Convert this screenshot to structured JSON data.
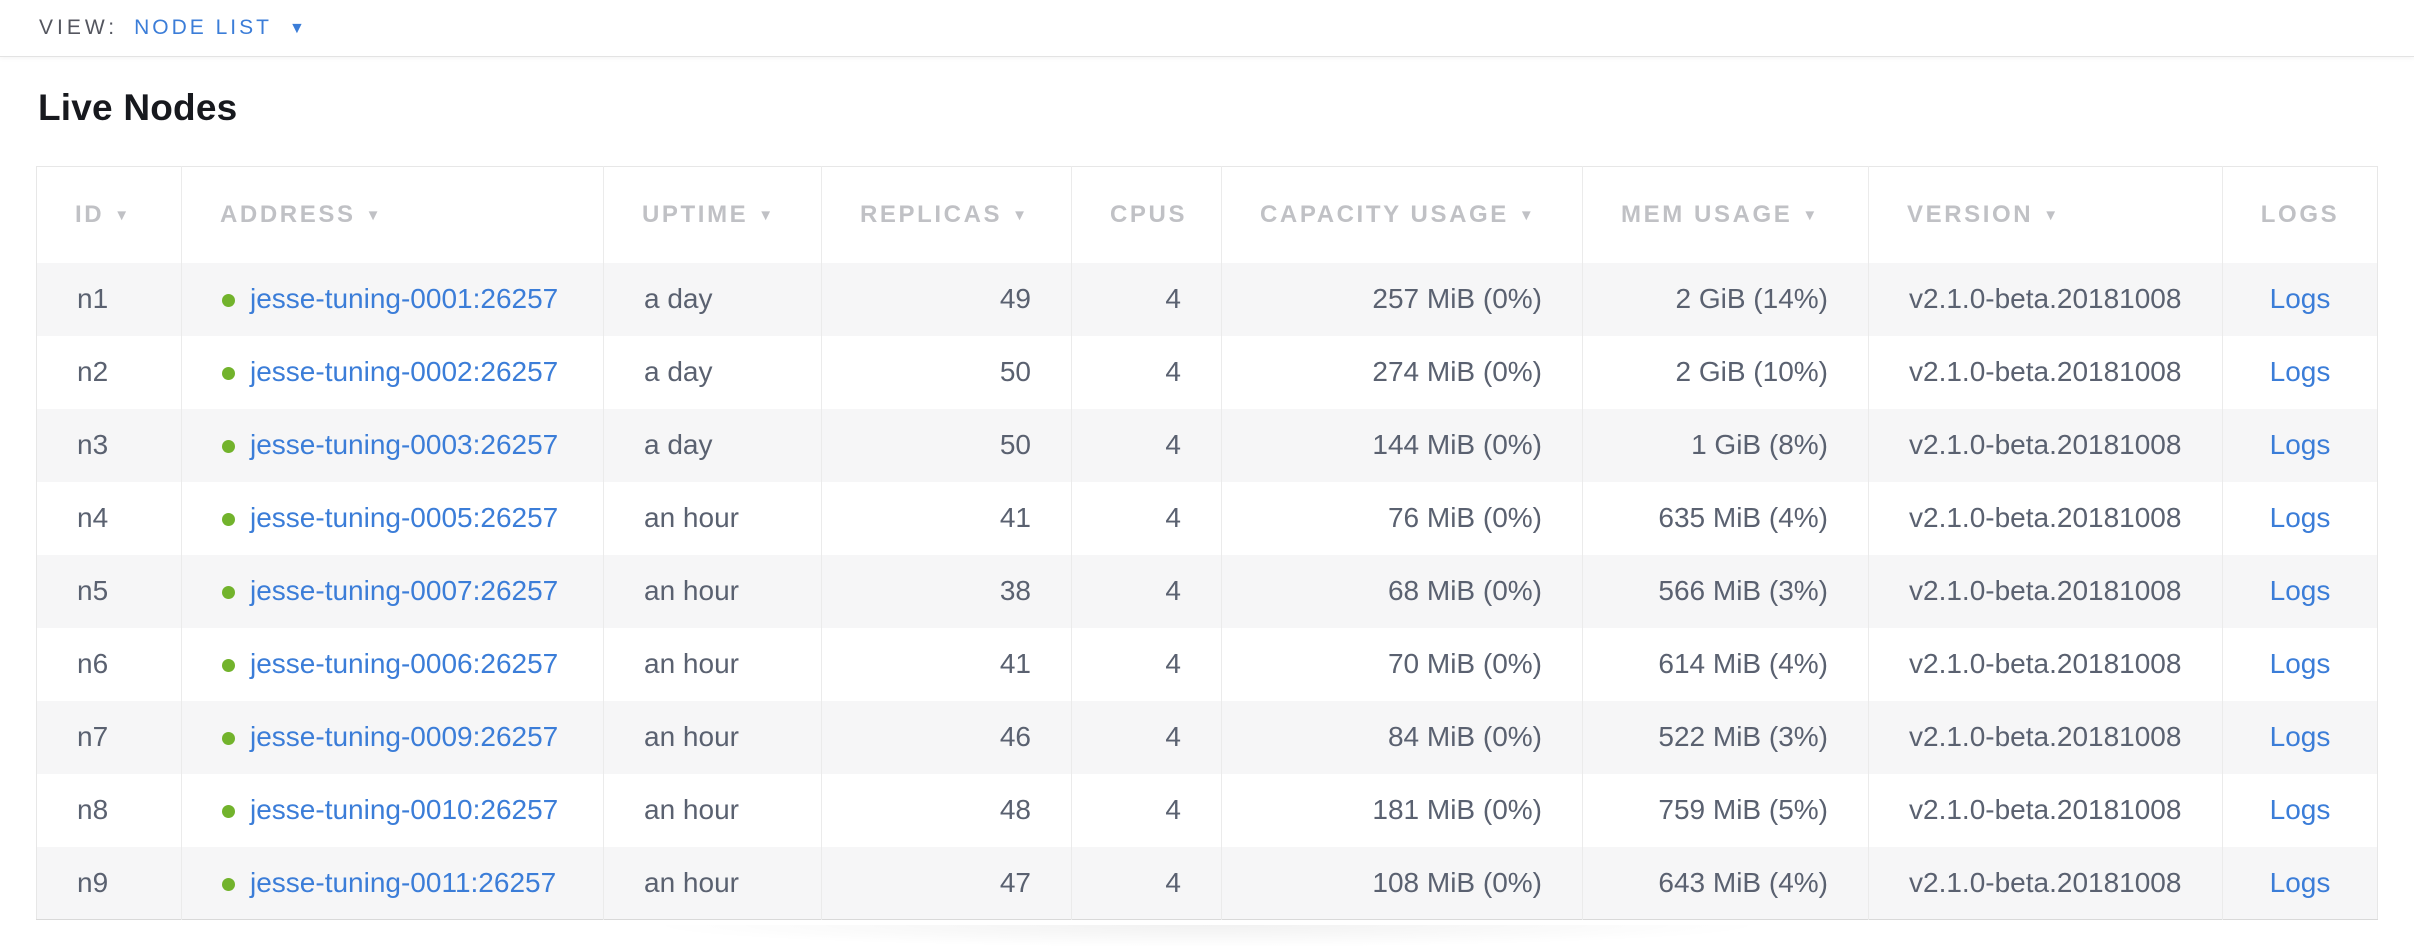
{
  "view_bar": {
    "label": "VIEW:",
    "selected": "NODE LIST",
    "caret_icon": "caret-down"
  },
  "page": {
    "title": "Live Nodes"
  },
  "table": {
    "columns": [
      {
        "label": "ID",
        "sorted": true,
        "align": "left"
      },
      {
        "label": "ADDRESS",
        "sorted": true,
        "align": "left"
      },
      {
        "label": "UPTIME",
        "sorted": true,
        "align": "left"
      },
      {
        "label": "REPLICAS",
        "sorted": true,
        "align": "left"
      },
      {
        "label": "CPUS",
        "sorted": false,
        "align": "left"
      },
      {
        "label": "CAPACITY USAGE",
        "sorted": true,
        "align": "left"
      },
      {
        "label": "MEM USAGE",
        "sorted": true,
        "align": "left"
      },
      {
        "label": "VERSION",
        "sorted": true,
        "align": "left"
      },
      {
        "label": "LOGS",
        "sorted": false,
        "align": "center"
      }
    ],
    "sort_icon": "triangle-down",
    "status_icon": "healthy-green-dot",
    "rows": [
      {
        "id": "n1",
        "address": "jesse-tuning-0001:26257",
        "status": "healthy",
        "uptime": "a day",
        "replicas": "49",
        "cpus": "4",
        "capacity_usage": "257 MiB (0%)",
        "mem_usage": "2 GiB (14%)",
        "version": "v2.1.0-beta.20181008",
        "logs_label": "Logs"
      },
      {
        "id": "n2",
        "address": "jesse-tuning-0002:26257",
        "status": "healthy",
        "uptime": "a day",
        "replicas": "50",
        "cpus": "4",
        "capacity_usage": "274 MiB (0%)",
        "mem_usage": "2 GiB (10%)",
        "version": "v2.1.0-beta.20181008",
        "logs_label": "Logs"
      },
      {
        "id": "n3",
        "address": "jesse-tuning-0003:26257",
        "status": "healthy",
        "uptime": "a day",
        "replicas": "50",
        "cpus": "4",
        "capacity_usage": "144 MiB (0%)",
        "mem_usage": "1 GiB (8%)",
        "version": "v2.1.0-beta.20181008",
        "logs_label": "Logs"
      },
      {
        "id": "n4",
        "address": "jesse-tuning-0005:26257",
        "status": "healthy",
        "uptime": "an hour",
        "replicas": "41",
        "cpus": "4",
        "capacity_usage": "76 MiB (0%)",
        "mem_usage": "635 MiB (4%)",
        "version": "v2.1.0-beta.20181008",
        "logs_label": "Logs"
      },
      {
        "id": "n5",
        "address": "jesse-tuning-0007:26257",
        "status": "healthy",
        "uptime": "an hour",
        "replicas": "38",
        "cpus": "4",
        "capacity_usage": "68 MiB (0%)",
        "mem_usage": "566 MiB (3%)",
        "version": "v2.1.0-beta.20181008",
        "logs_label": "Logs"
      },
      {
        "id": "n6",
        "address": "jesse-tuning-0006:26257",
        "status": "healthy",
        "uptime": "an hour",
        "replicas": "41",
        "cpus": "4",
        "capacity_usage": "70 MiB (0%)",
        "mem_usage": "614 MiB (4%)",
        "version": "v2.1.0-beta.20181008",
        "logs_label": "Logs"
      },
      {
        "id": "n7",
        "address": "jesse-tuning-0009:26257",
        "status": "healthy",
        "uptime": "an hour",
        "replicas": "46",
        "cpus": "4",
        "capacity_usage": "84 MiB (0%)",
        "mem_usage": "522 MiB (3%)",
        "version": "v2.1.0-beta.20181008",
        "logs_label": "Logs"
      },
      {
        "id": "n8",
        "address": "jesse-tuning-0010:26257",
        "status": "healthy",
        "uptime": "an hour",
        "replicas": "48",
        "cpus": "4",
        "capacity_usage": "181 MiB (0%)",
        "mem_usage": "759 MiB (5%)",
        "version": "v2.1.0-beta.20181008",
        "logs_label": "Logs"
      },
      {
        "id": "n9",
        "address": "jesse-tuning-0011:26257",
        "status": "healthy",
        "uptime": "an hour",
        "replicas": "47",
        "cpus": "4",
        "capacity_usage": "108 MiB (0%)",
        "mem_usage": "643 MiB (4%)",
        "version": "v2.1.0-beta.20181008",
        "logs_label": "Logs"
      }
    ]
  },
  "colors": {
    "accent_blue": "#3b7dd8",
    "healthy_green": "#72b32c",
    "header_gray": "#c0c1c5",
    "cell_text": "#5a6170"
  }
}
